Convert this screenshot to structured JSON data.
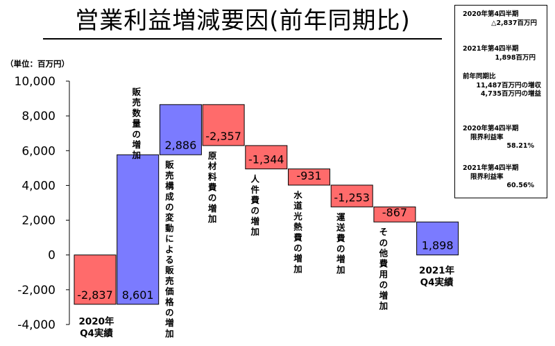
{
  "title": "営業利益増減要因(前年同期比)",
  "unit_label": "（単位：百万円）",
  "info_box": {
    "prev": {
      "label": "2020年第4四半期",
      "value": "△2,837百万円"
    },
    "curr": {
      "label": "2021年第4四半期",
      "value": "1,898百万円"
    },
    "yoy": {
      "label": "前年同期比",
      "line1": "11,487百万円の増収",
      "line2": "4,735百万円の増益"
    },
    "margin_prev": {
      "label": "2020年第4四半期",
      "sub": "限界利益率",
      "value": "58.21%"
    },
    "margin_curr": {
      "label": "2021年第4四半期",
      "sub": "限界利益率",
      "value": "60.56%"
    }
  },
  "colors": {
    "increase": "#7b7bff",
    "decrease": "#ff6b6b",
    "total": "#7b7bff"
  },
  "chart_data": {
    "type": "waterfall",
    "title": "営業利益増減要因(前年同期比)",
    "ylabel": "（単位：百万円）",
    "ylim": [
      -4000,
      10000
    ],
    "yticks": [
      "10,000",
      "8,000",
      "6,000",
      "4,000",
      "2,000",
      "0",
      "-2,000",
      "-4,000"
    ],
    "grid": false,
    "steps": [
      {
        "category": "2020年 Q4実績",
        "value": -2837,
        "label": "-2,837",
        "kind": "total",
        "color_kind": "decrease"
      },
      {
        "category": "販売数量の増加",
        "value": 8601,
        "label": "8,601",
        "kind": "delta"
      },
      {
        "category": "販売構成の変動による販売価格の増加",
        "value": 2886,
        "label": "2,886",
        "kind": "delta"
      },
      {
        "category": "原材料費の増加",
        "value": -2357,
        "label": "-2,357",
        "kind": "delta"
      },
      {
        "category": "人件費の増加",
        "value": -1344,
        "label": "-1,344",
        "kind": "delta"
      },
      {
        "category": "水道光熱費の増加",
        "value": -931,
        "label": "-931",
        "kind": "delta"
      },
      {
        "category": "運送費の増加",
        "value": -1253,
        "label": "-1,253",
        "kind": "delta"
      },
      {
        "category": "その他費用の増加",
        "value": -867,
        "label": "-867",
        "kind": "delta"
      },
      {
        "category": "2021年 Q4実績",
        "value": 1898,
        "label": "1,898",
        "kind": "total"
      }
    ],
    "category_lines": [
      [
        "2020年",
        "Q4実績"
      ],
      [
        "販売数量の増加"
      ],
      [
        "販売構成の変動による販売価格の増加"
      ],
      [
        "原材料費の増加"
      ],
      [
        "人件費の増加"
      ],
      [
        "水道光熱費の増加"
      ],
      [
        "運送費の増加"
      ],
      [
        "その他費用の増加"
      ],
      [
        "2021年",
        "Q4実績"
      ]
    ]
  }
}
